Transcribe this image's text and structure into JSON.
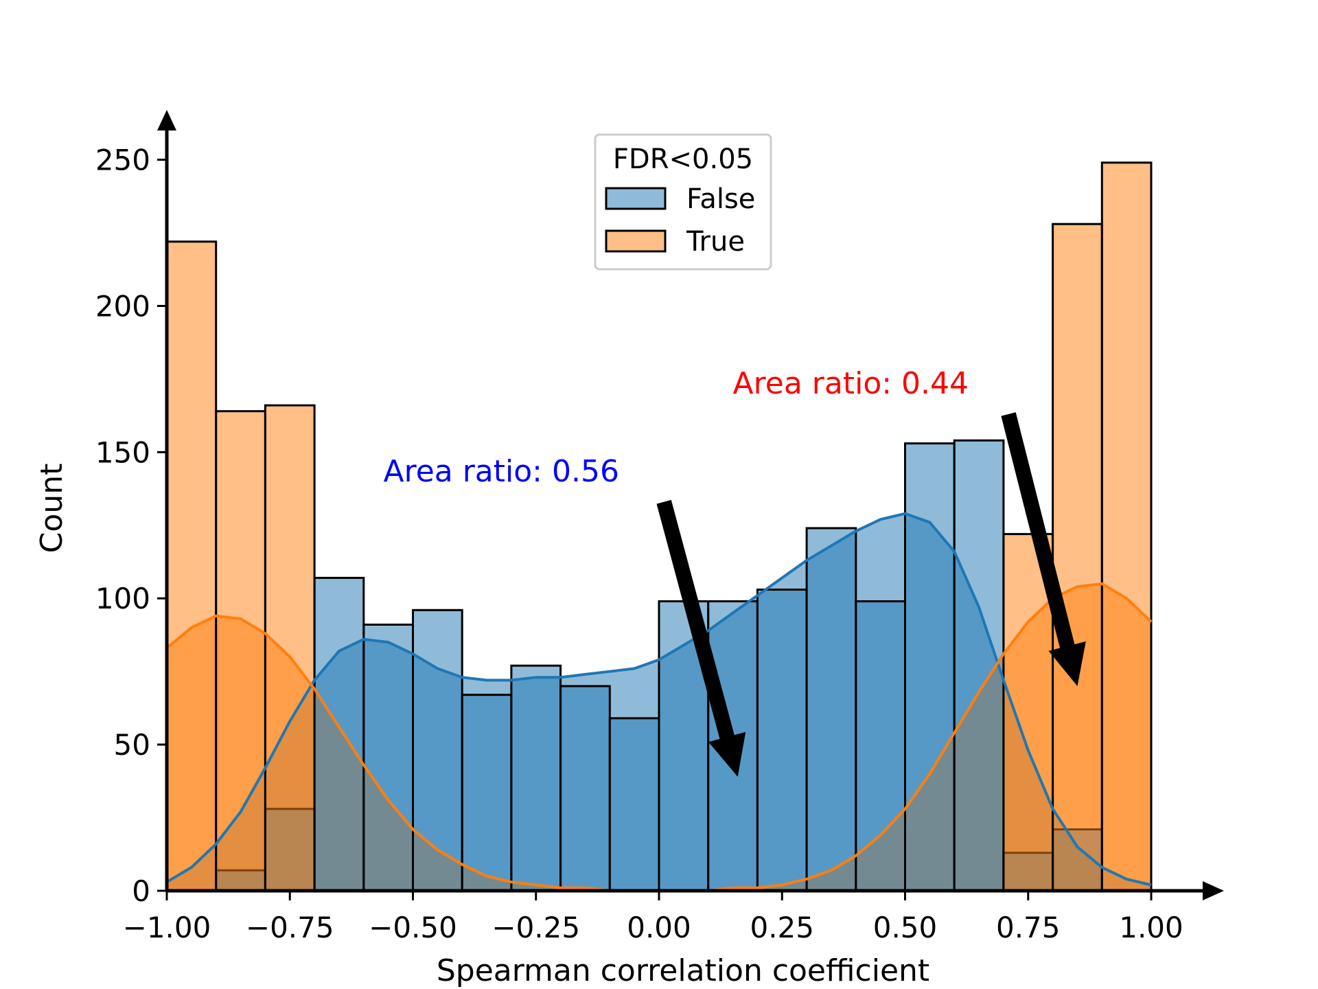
{
  "chart_data": {
    "type": "histogram",
    "title": "",
    "xlabel": "Spearman correlation coefficient",
    "ylabel": "Count",
    "xlim": [
      -1.0,
      1.0
    ],
    "ylim": [
      0,
      260
    ],
    "bin_edges": [
      -1.0,
      -0.9,
      -0.8,
      -0.7,
      -0.6,
      -0.5,
      -0.4,
      -0.3,
      -0.2,
      -0.1,
      0.0,
      0.1,
      0.2,
      0.3,
      0.4,
      0.5,
      0.6,
      0.7,
      0.8,
      0.9,
      1.0
    ],
    "x_ticks": [
      -1.0,
      -0.75,
      -0.5,
      -0.25,
      0.0,
      0.25,
      0.5,
      0.75,
      1.0
    ],
    "x_tick_labels": [
      "−1.00",
      "−0.75",
      "−0.50",
      "−0.25",
      "0.00",
      "0.25",
      "0.50",
      "0.75",
      "1.00"
    ],
    "y_ticks": [
      0,
      50,
      100,
      150,
      200,
      250
    ],
    "y_tick_labels": [
      "0",
      "50",
      "100",
      "150",
      "200",
      "250"
    ],
    "legend": {
      "title": "FDR<0.05",
      "position": "top-center",
      "entries": [
        "False",
        "True"
      ]
    },
    "series": [
      {
        "name": "False",
        "color": "#1f77b4",
        "values": [
          0,
          7,
          28,
          107,
          91,
          96,
          67,
          77,
          70,
          59,
          99,
          99,
          103,
          124,
          99,
          153,
          154,
          13,
          21,
          0
        ],
        "kde": {
          "x": [
            -1.0,
            -0.95,
            -0.9,
            -0.85,
            -0.8,
            -0.75,
            -0.7,
            -0.65,
            -0.6,
            -0.55,
            -0.5,
            -0.45,
            -0.4,
            -0.35,
            -0.3,
            -0.25,
            -0.2,
            -0.15,
            -0.1,
            -0.05,
            0.0,
            0.05,
            0.1,
            0.15,
            0.2,
            0.25,
            0.3,
            0.35,
            0.4,
            0.45,
            0.5,
            0.55,
            0.6,
            0.65,
            0.7,
            0.75,
            0.8,
            0.85,
            0.9,
            0.95,
            1.0
          ],
          "y": [
            3,
            8,
            16,
            27,
            42,
            58,
            72,
            82,
            86,
            85,
            81,
            76,
            73,
            72,
            72,
            73,
            73,
            74,
            75,
            76,
            79,
            84,
            89,
            95,
            101,
            107,
            113,
            118,
            123,
            127,
            129,
            126,
            116,
            97,
            72,
            48,
            28,
            15,
            8,
            4,
            2
          ]
        }
      },
      {
        "name": "True",
        "color": "#ff7f0e",
        "values": [
          222,
          164,
          166,
          0,
          0,
          0,
          0,
          0,
          0,
          0,
          0,
          0,
          0,
          0,
          0,
          0,
          0,
          122,
          228,
          249
        ],
        "kde": {
          "x": [
            -1.0,
            -0.95,
            -0.9,
            -0.85,
            -0.8,
            -0.75,
            -0.7,
            -0.65,
            -0.6,
            -0.55,
            -0.5,
            -0.45,
            -0.4,
            -0.35,
            -0.3,
            -0.25,
            -0.2,
            -0.15,
            -0.1,
            -0.05,
            0.0,
            0.05,
            0.1,
            0.15,
            0.2,
            0.25,
            0.3,
            0.35,
            0.4,
            0.45,
            0.5,
            0.55,
            0.6,
            0.65,
            0.7,
            0.75,
            0.8,
            0.85,
            0.9,
            0.95,
            1.0
          ],
          "y": [
            83,
            90,
            94,
            93,
            88,
            80,
            69,
            56,
            43,
            31,
            21,
            14,
            9,
            5,
            3,
            2,
            1,
            1,
            0,
            0,
            0,
            0,
            0,
            1,
            1,
            2,
            4,
            7,
            12,
            19,
            28,
            40,
            54,
            68,
            81,
            92,
            100,
            104,
            105,
            100,
            92
          ]
        }
      }
    ],
    "annotations": [
      {
        "text": "Area ratio: 0.56",
        "color": "#0000ff",
        "text_at": [
          -0.56,
          140
        ],
        "arrow_from": [
          0.01,
          133
        ],
        "arrow_to": [
          0.16,
          39
        ]
      },
      {
        "text": "Area ratio: 0.44",
        "color": "#ff0000",
        "text_at": [
          0.15,
          170
        ],
        "arrow_from": [
          0.71,
          163
        ],
        "arrow_to": [
          0.85,
          70
        ]
      }
    ]
  }
}
